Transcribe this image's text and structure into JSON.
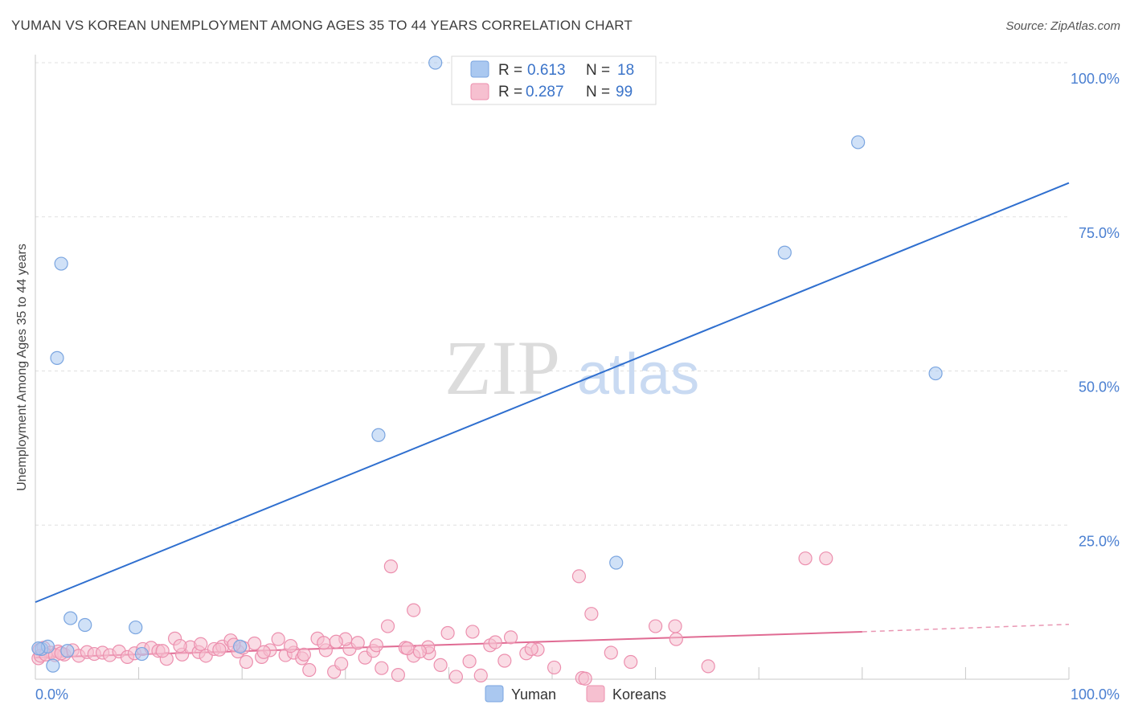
{
  "header": {
    "title": "YUMAN VS KOREAN UNEMPLOYMENT AMONG AGES 35 TO 44 YEARS CORRELATION CHART",
    "source": "Source: ZipAtlas.com"
  },
  "watermark": {
    "zip": "ZIP",
    "atlas": "atlas"
  },
  "stats": [
    {
      "r_label": "R =",
      "r_value": "0.613",
      "n_label": "N =",
      "n_value": "18",
      "color": "#aac8f0",
      "stroke": "#7aa5e0"
    },
    {
      "r_label": "R =",
      "r_value": "0.287",
      "n_label": "N =",
      "n_value": "99",
      "color": "#f6c0d0",
      "stroke": "#ec8fae"
    }
  ],
  "chart_data": {
    "type": "scatter",
    "title": "YUMAN VS KOREAN UNEMPLOYMENT AMONG AGES 35 TO 44 YEARS CORRELATION CHART",
    "xlabel": "",
    "ylabel": "Unemployment Among Ages 35 to 44 years",
    "xlim": [
      0,
      100
    ],
    "ylim": [
      0,
      100
    ],
    "x_tick_labels": [
      "0.0%",
      "100.0%"
    ],
    "y_tick_labels": [
      "25.0%",
      "50.0%",
      "75.0%",
      "100.0%"
    ],
    "y_ticks": [
      25,
      50,
      75,
      100
    ],
    "grid": true,
    "legend_position": "bottom-center",
    "series": [
      {
        "name": "Yuman",
        "color": "#aac8f0",
        "stroke": "#7aa5e0",
        "line_color": "#2f6fcf",
        "trend": {
          "x": [
            0,
            100
          ],
          "y": [
            12.5,
            80.5
          ]
        },
        "points": [
          {
            "x": 38.7,
            "y": 100.0
          },
          {
            "x": 79.6,
            "y": 87.1
          },
          {
            "x": 72.5,
            "y": 69.2
          },
          {
            "x": 2.5,
            "y": 67.4
          },
          {
            "x": 2.1,
            "y": 52.1
          },
          {
            "x": 87.1,
            "y": 49.6
          },
          {
            "x": 33.2,
            "y": 39.6
          },
          {
            "x": 56.2,
            "y": 18.9
          },
          {
            "x": 3.4,
            "y": 9.9
          },
          {
            "x": 4.8,
            "y": 8.8
          },
          {
            "x": 9.7,
            "y": 8.4
          },
          {
            "x": 0.6,
            "y": 4.9
          },
          {
            "x": 1.2,
            "y": 5.3
          },
          {
            "x": 3.1,
            "y": 4.6
          },
          {
            "x": 1.7,
            "y": 2.2
          },
          {
            "x": 10.3,
            "y": 4.1
          },
          {
            "x": 19.8,
            "y": 5.3
          },
          {
            "x": 0.3,
            "y": 5.0
          }
        ]
      },
      {
        "name": "Koreans",
        "color": "#f6c0d0",
        "stroke": "#ec8fae",
        "line_color": "#e06b93",
        "trend": {
          "x": [
            0,
            80
          ],
          "y": [
            3.5,
            7.7
          ]
        },
        "trend_dashed": {
          "x": [
            80,
            100
          ],
          "y": [
            7.7,
            8.9
          ]
        },
        "points": [
          {
            "x": 74.5,
            "y": 19.6
          },
          {
            "x": 76.5,
            "y": 19.6
          },
          {
            "x": 34.4,
            "y": 18.3
          },
          {
            "x": 52.6,
            "y": 16.7
          },
          {
            "x": 36.6,
            "y": 11.2
          },
          {
            "x": 53.8,
            "y": 10.6
          },
          {
            "x": 34.1,
            "y": 8.6
          },
          {
            "x": 60.0,
            "y": 8.6
          },
          {
            "x": 61.9,
            "y": 8.6
          },
          {
            "x": 39.9,
            "y": 7.5
          },
          {
            "x": 42.3,
            "y": 7.7
          },
          {
            "x": 0.4,
            "y": 4.8
          },
          {
            "x": 0.3,
            "y": 3.4
          },
          {
            "x": 0.8,
            "y": 5.1
          },
          {
            "x": 1.5,
            "y": 4.3
          },
          {
            "x": 2.2,
            "y": 4.5
          },
          {
            "x": 2.8,
            "y": 4.0
          },
          {
            "x": 3.6,
            "y": 4.7
          },
          {
            "x": 4.2,
            "y": 3.8
          },
          {
            "x": 5.0,
            "y": 4.4
          },
          {
            "x": 5.7,
            "y": 4.1
          },
          {
            "x": 6.5,
            "y": 4.3
          },
          {
            "x": 7.2,
            "y": 3.9
          },
          {
            "x": 8.1,
            "y": 4.5
          },
          {
            "x": 8.9,
            "y": 3.6
          },
          {
            "x": 9.6,
            "y": 4.2
          },
          {
            "x": 10.4,
            "y": 4.9
          },
          {
            "x": 11.2,
            "y": 5.1
          },
          {
            "x": 11.9,
            "y": 4.6
          },
          {
            "x": 12.7,
            "y": 3.3
          },
          {
            "x": 13.5,
            "y": 6.6
          },
          {
            "x": 14.2,
            "y": 4.0
          },
          {
            "x": 15.0,
            "y": 5.2
          },
          {
            "x": 15.8,
            "y": 4.4
          },
          {
            "x": 16.5,
            "y": 3.8
          },
          {
            "x": 17.3,
            "y": 4.9
          },
          {
            "x": 18.1,
            "y": 5.3
          },
          {
            "x": 18.9,
            "y": 6.3
          },
          {
            "x": 19.6,
            "y": 4.5
          },
          {
            "x": 20.4,
            "y": 2.8
          },
          {
            "x": 21.2,
            "y": 5.8
          },
          {
            "x": 21.9,
            "y": 3.6
          },
          {
            "x": 22.7,
            "y": 4.7
          },
          {
            "x": 23.5,
            "y": 6.5
          },
          {
            "x": 24.2,
            "y": 3.9
          },
          {
            "x": 25.0,
            "y": 4.3
          },
          {
            "x": 25.8,
            "y": 3.4
          },
          {
            "x": 26.5,
            "y": 1.5
          },
          {
            "x": 27.3,
            "y": 6.6
          },
          {
            "x": 28.1,
            "y": 4.7
          },
          {
            "x": 28.9,
            "y": 1.2
          },
          {
            "x": 29.6,
            "y": 2.5
          },
          {
            "x": 30.4,
            "y": 4.9
          },
          {
            "x": 31.2,
            "y": 5.9
          },
          {
            "x": 31.9,
            "y": 3.5
          },
          {
            "x": 32.7,
            "y": 4.6
          },
          {
            "x": 33.5,
            "y": 1.8
          },
          {
            "x": 35.1,
            "y": 0.7
          },
          {
            "x": 35.8,
            "y": 5.1
          },
          {
            "x": 36.6,
            "y": 3.8
          },
          {
            "x": 38.1,
            "y": 4.2
          },
          {
            "x": 39.2,
            "y": 2.3
          },
          {
            "x": 40.7,
            "y": 0.4
          },
          {
            "x": 42.0,
            "y": 2.9
          },
          {
            "x": 43.1,
            "y": 0.6
          },
          {
            "x": 44.0,
            "y": 5.5
          },
          {
            "x": 45.4,
            "y": 3.0
          },
          {
            "x": 47.5,
            "y": 4.2
          },
          {
            "x": 48.6,
            "y": 4.8
          },
          {
            "x": 50.2,
            "y": 1.9
          },
          {
            "x": 52.9,
            "y": 0.2
          },
          {
            "x": 53.2,
            "y": 0.1
          },
          {
            "x": 55.7,
            "y": 4.3
          },
          {
            "x": 57.6,
            "y": 2.8
          },
          {
            "x": 62.0,
            "y": 6.5
          },
          {
            "x": 65.1,
            "y": 2.1
          },
          {
            "x": 0.5,
            "y": 3.8
          },
          {
            "x": 1.0,
            "y": 4.0
          },
          {
            "x": 1.9,
            "y": 3.9
          },
          {
            "x": 2.5,
            "y": 4.2
          },
          {
            "x": 14.0,
            "y": 5.4
          },
          {
            "x": 17.8,
            "y": 4.8
          },
          {
            "x": 20.1,
            "y": 5.1
          },
          {
            "x": 22.1,
            "y": 4.4
          },
          {
            "x": 24.7,
            "y": 5.4
          },
          {
            "x": 26.0,
            "y": 4.0
          },
          {
            "x": 30.0,
            "y": 6.5
          },
          {
            "x": 33.0,
            "y": 5.5
          },
          {
            "x": 36.0,
            "y": 5.0
          },
          {
            "x": 38.0,
            "y": 5.2
          },
          {
            "x": 44.5,
            "y": 6.0
          },
          {
            "x": 46.0,
            "y": 6.8
          },
          {
            "x": 48.0,
            "y": 4.9
          },
          {
            "x": 12.3,
            "y": 4.6
          },
          {
            "x": 16.0,
            "y": 5.7
          },
          {
            "x": 19.2,
            "y": 5.6
          },
          {
            "x": 27.9,
            "y": 5.9
          },
          {
            "x": 29.1,
            "y": 6.1
          },
          {
            "x": 37.2,
            "y": 4.5
          }
        ]
      }
    ]
  },
  "legend": {
    "items": [
      {
        "label": "Yuman",
        "color": "#aac8f0",
        "stroke": "#7aa5e0"
      },
      {
        "label": "Koreans",
        "color": "#f6c0d0",
        "stroke": "#ec8fae"
      }
    ]
  }
}
